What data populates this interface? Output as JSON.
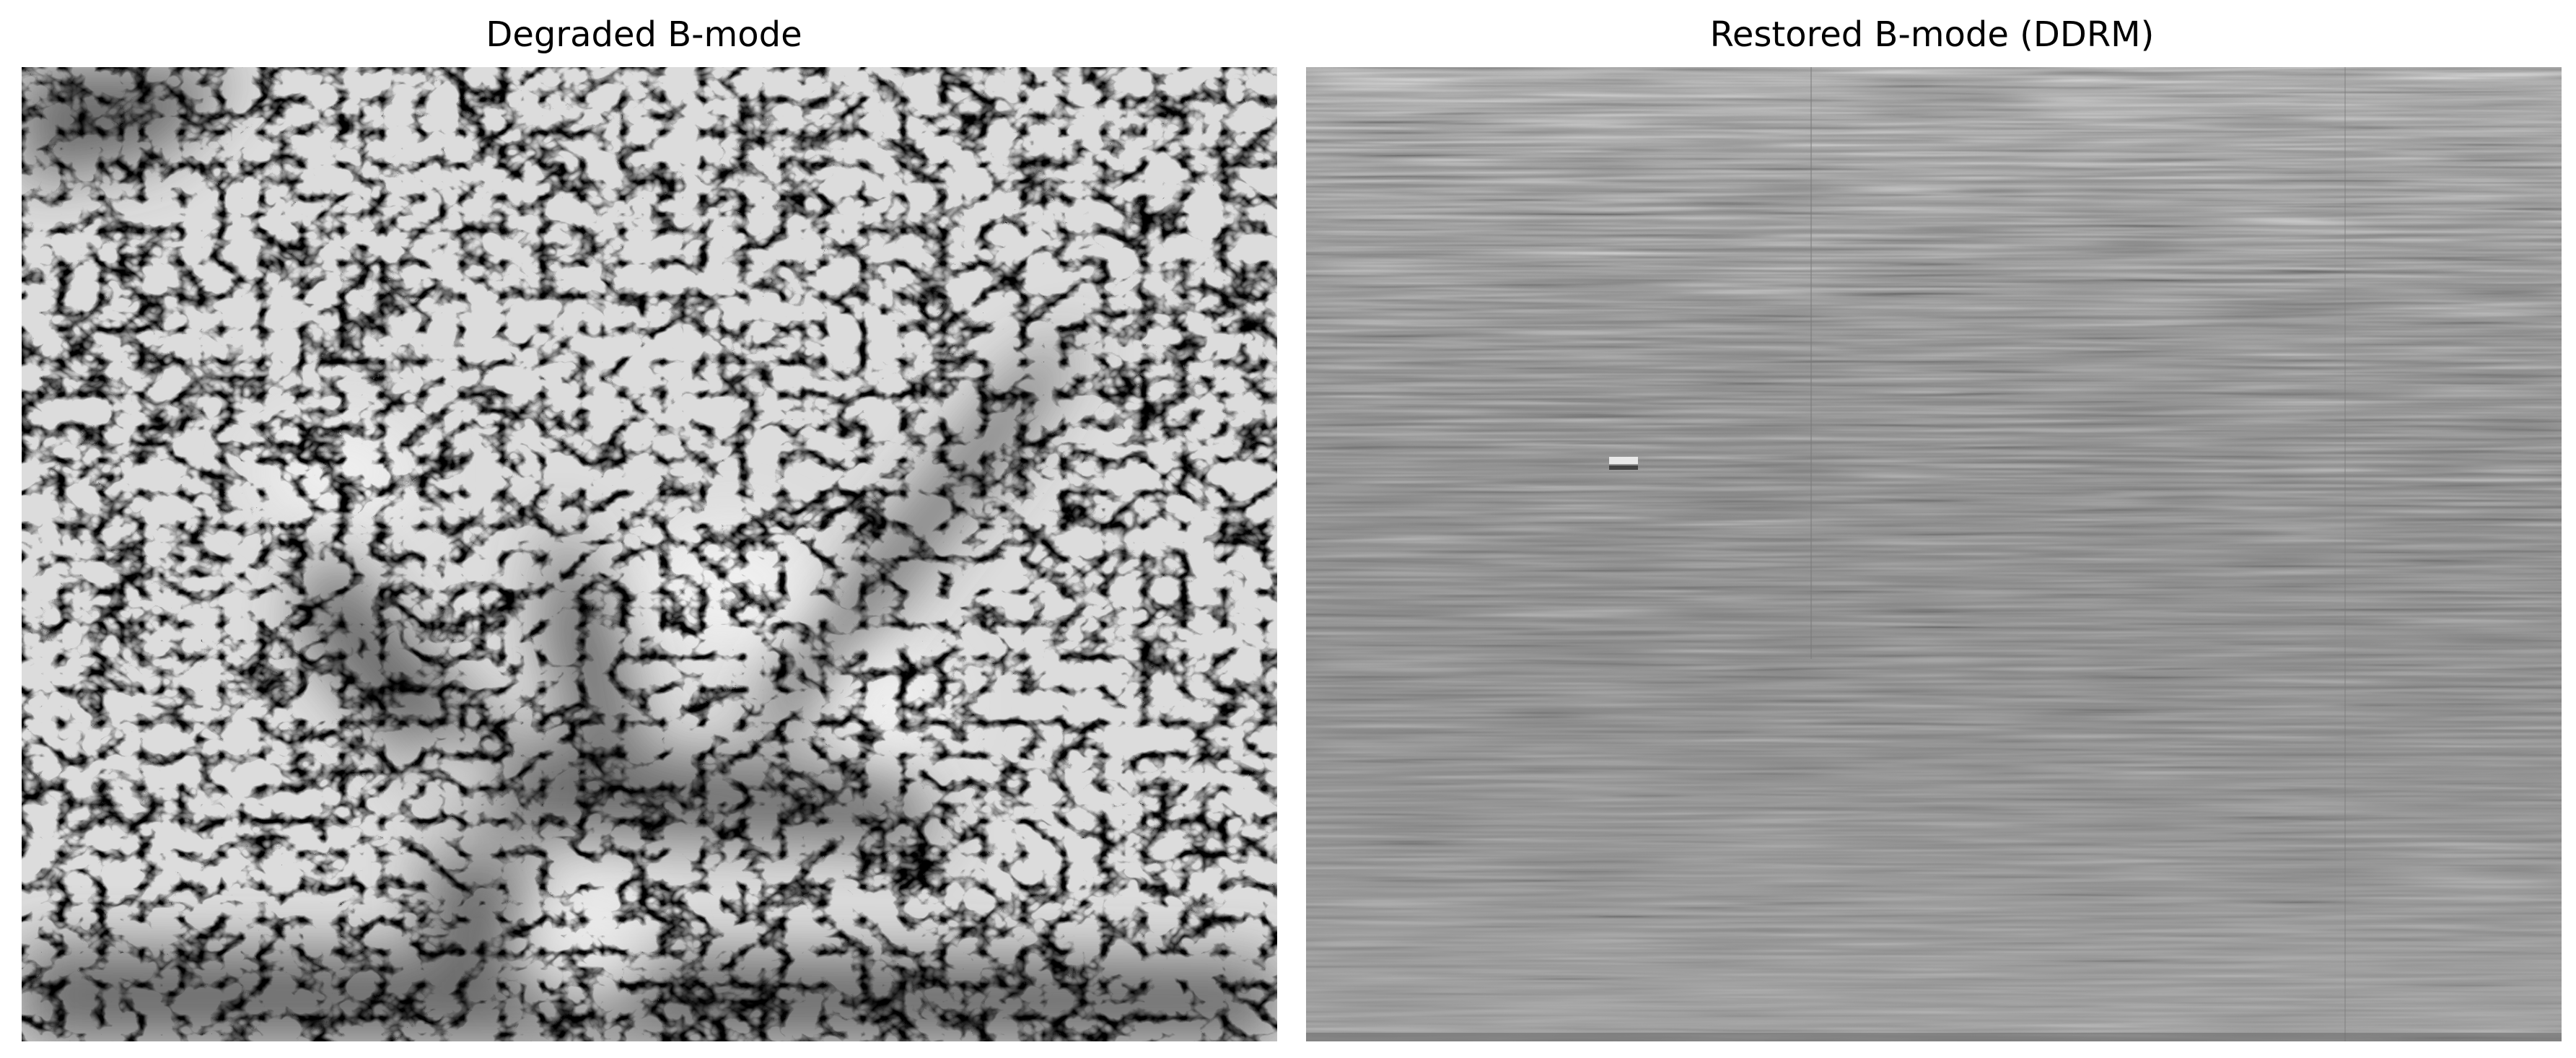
{
  "panels": [
    {
      "title": "Degraded B-mode",
      "image": "grayscale ultrasound B-mode image with speckle texture and dark branching structure"
    },
    {
      "title": "Restored B-mode (DDRM)",
      "image": "grayscale restored ultrasound image with fine horizontal streak texture"
    }
  ],
  "colors": {
    "background": "#ffffff",
    "title_text": "#000000",
    "degraded_base": "#d8d8d8",
    "restored_base": "#9a9a9a"
  }
}
